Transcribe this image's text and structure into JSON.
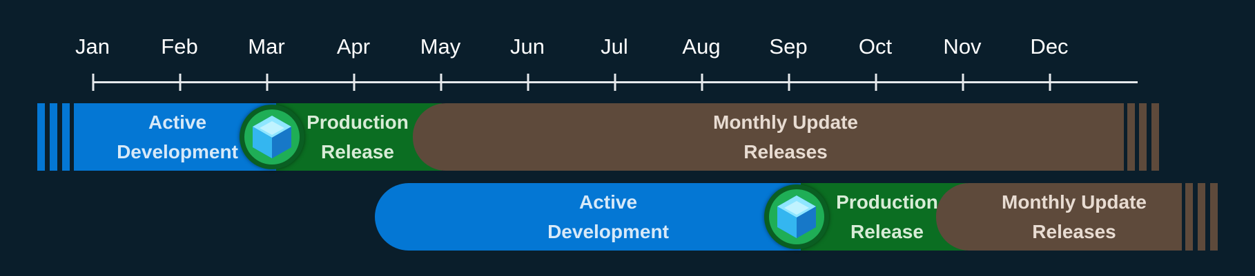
{
  "timeline": {
    "months": [
      "Jan",
      "Feb",
      "Mar",
      "Apr",
      "May",
      "Jun",
      "Jul",
      "Aug",
      "Sep",
      "Oct",
      "Nov",
      "Dec"
    ]
  },
  "rows": [
    {
      "active": {
        "line1": "Active",
        "line2": "Development"
      },
      "production": {
        "line1": "Production",
        "line2": "Release"
      },
      "monthly": {
        "line1": "Monthly Update",
        "line2": "Releases"
      }
    },
    {
      "active": {
        "line1": "Active",
        "line2": "Development"
      },
      "production": {
        "line1": "Production",
        "line2": "Release"
      },
      "monthly": {
        "line1": "Monthly Update",
        "line2": "Releases"
      }
    }
  ],
  "colors": {
    "background": "#0a1e2b",
    "axis": "#e6e9ec",
    "active": "#0477d4",
    "production": "#0b6e22",
    "monthly": "#5e4a3b",
    "badge": "#1fae56"
  },
  "icons": {
    "release_badge": "cube-icon"
  }
}
